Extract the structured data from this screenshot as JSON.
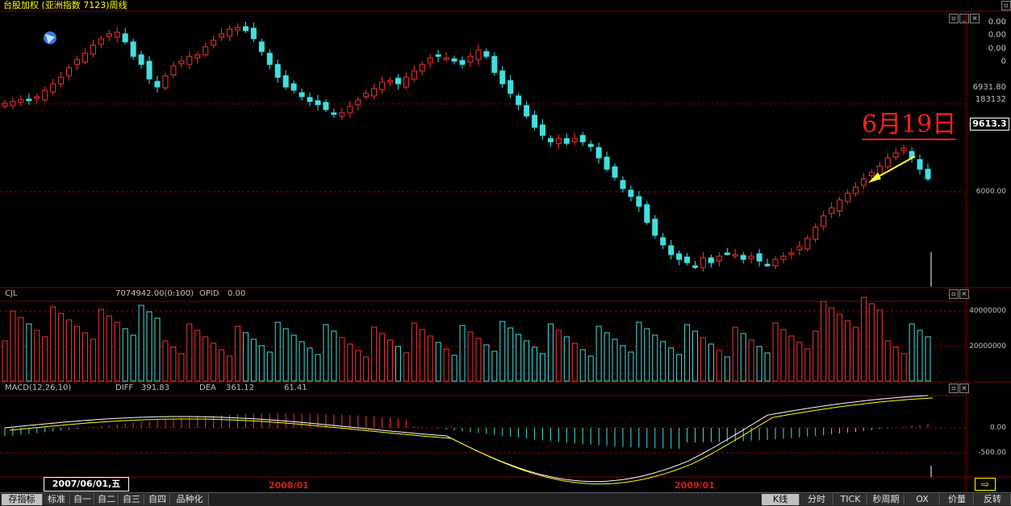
{
  "window": {
    "title": "台股加权 (亚洲指数 7123)周线",
    "controls": [
      "minimize-icon",
      "restore-icon",
      "close-icon"
    ]
  },
  "price_panel": {
    "right_axis": [
      "0.00",
      "0.00",
      "0.00",
      "0",
      "6931.80",
      "183132"
    ],
    "current_price": "9613.3",
    "level_label": "6000.00",
    "annotation": "6月19日",
    "annotation_color": "#ff2020",
    "arrow_color": "#ffff40"
  },
  "volume_panel": {
    "label": "CJL",
    "value": "7074942.00(0:100)",
    "opid_label": "OPID",
    "opid_value": "0.00",
    "axis": [
      "40000000",
      "20000000"
    ]
  },
  "macd_panel": {
    "label": "MACD(12,26,10)",
    "diff_label": "DIFF",
    "diff_value": "391.83",
    "dea_label": "DEA",
    "dea_value": "361.12",
    "macd_value": "61.41",
    "axis": [
      "0.00",
      "-500.00"
    ]
  },
  "date_box": "2007/06/01,五",
  "x_labels": [
    "2008/01",
    "2009/01"
  ],
  "tabs_left": [
    "存指标",
    "标准",
    "自一",
    "自二",
    "自三",
    "自四",
    "品种化"
  ],
  "tabs_right": [
    "K线",
    "分时",
    "TICK",
    "秒周期",
    "OX",
    "价量",
    "反转"
  ],
  "colors": {
    "up": "#ff3030",
    "down": "#40e0e0",
    "grid": "#a00000",
    "diff_line": "#ffffff",
    "dea_line": "#ffff00"
  }
}
